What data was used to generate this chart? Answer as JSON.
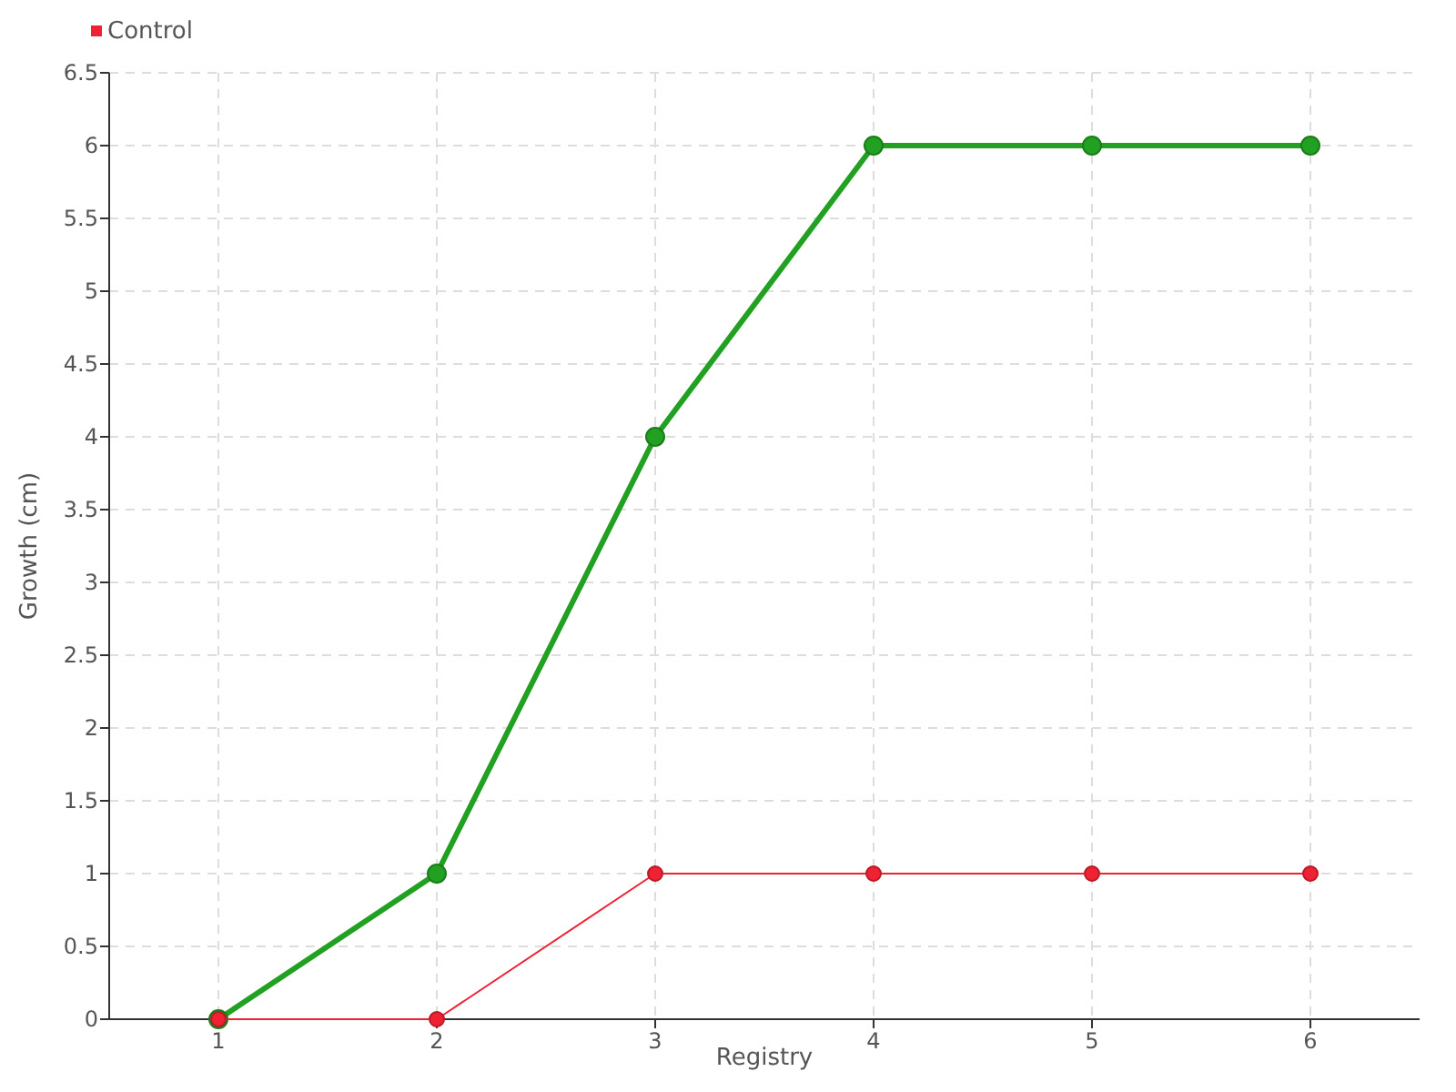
{
  "chart_data": {
    "type": "line",
    "xlabel": "Registry",
    "ylabel": "Growth (cm)",
    "x": [
      1,
      2,
      3,
      4,
      5,
      6
    ],
    "xlim": [
      0.5,
      6.5
    ],
    "xticks": [
      1,
      2,
      3,
      4,
      5,
      6
    ],
    "ylim": [
      0,
      6.5
    ],
    "yticks": [
      0,
      0.5,
      1,
      1.5,
      2,
      2.5,
      3,
      3.5,
      4,
      4.5,
      5,
      5.5,
      6,
      6.5
    ],
    "grid": true,
    "legend": "top left",
    "marker": "circle",
    "line_style": "solid",
    "series": [
      {
        "color": "#22a022",
        "values": [
          0,
          1,
          4,
          6,
          6,
          6
        ]
      },
      {
        "name": "Control",
        "color": "#ee2233",
        "values": [
          0,
          0,
          1,
          1,
          1,
          1
        ]
      }
    ]
  }
}
